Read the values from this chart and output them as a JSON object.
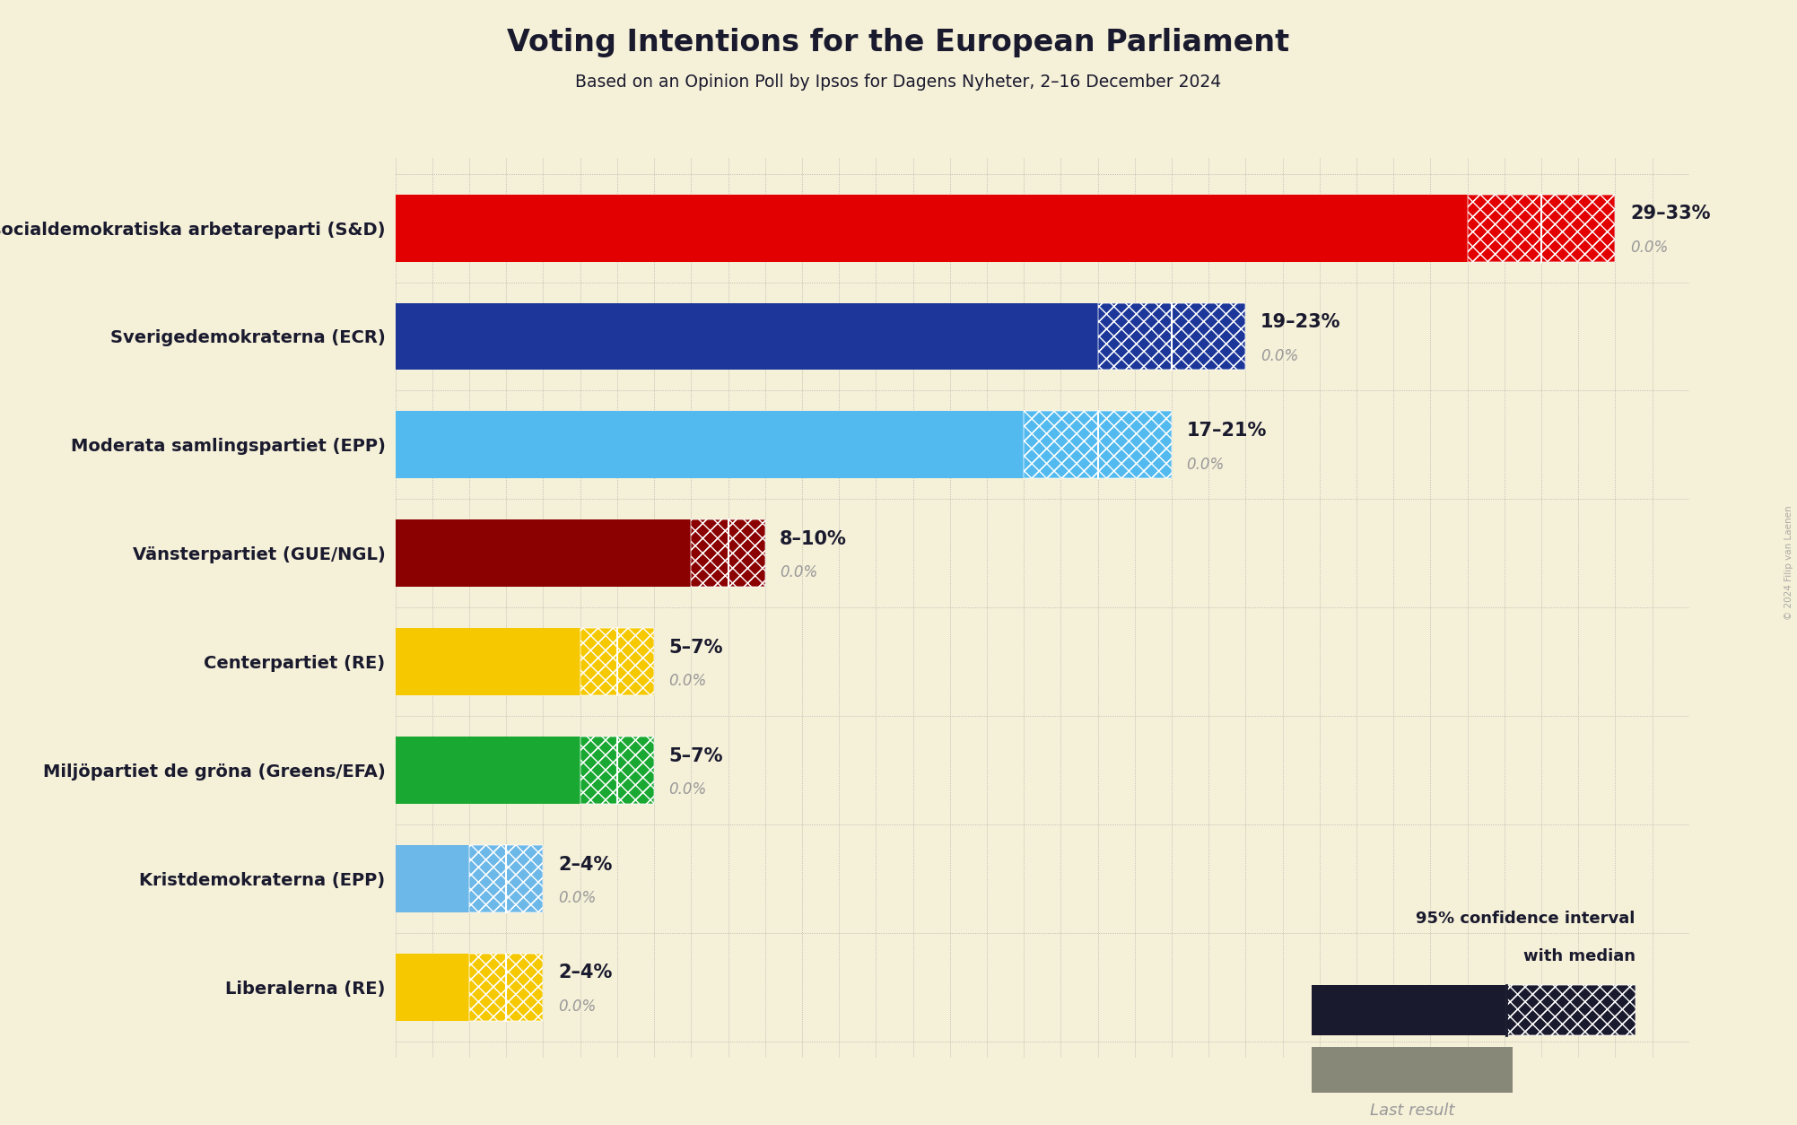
{
  "title": "Voting Intentions for the European Parliament",
  "subtitle": "Based on an Opinion Poll by Ipsos for Dagens Nyheter, 2–16 December 2024",
  "background_color": "#F5F0D8",
  "parties": [
    {
      "name": "Sveriges socialdemokratiska arbetareparti (S&D)",
      "low": 29,
      "high": 33,
      "median": 31,
      "last": 0.0,
      "color": "#E30000"
    },
    {
      "name": "Sverigedemokraterna (ECR)",
      "low": 19,
      "high": 23,
      "median": 21,
      "last": 0.0,
      "color": "#1C3799"
    },
    {
      "name": "Moderata samlingspartiet (EPP)",
      "low": 17,
      "high": 21,
      "median": 19,
      "last": 0.0,
      "color": "#52BAEF"
    },
    {
      "name": "Vänsterpartiet (GUE/NGL)",
      "low": 8,
      "high": 10,
      "median": 9,
      "last": 0.0,
      "color": "#8B0000"
    },
    {
      "name": "Centerpartiet (RE)",
      "low": 5,
      "high": 7,
      "median": 6,
      "last": 0.0,
      "color": "#F5C800"
    },
    {
      "name": "Miljöpartiet de gröna (Greens/EFA)",
      "low": 5,
      "high": 7,
      "median": 6,
      "last": 0.0,
      "color": "#19A832"
    },
    {
      "name": "Kristdemokraterna (EPP)",
      "low": 2,
      "high": 4,
      "median": 3,
      "last": 0.0,
      "color": "#6CB8E8"
    },
    {
      "name": "Liberalerna (RE)",
      "low": 2,
      "high": 4,
      "median": 3,
      "last": 0.0,
      "color": "#F5C800"
    }
  ],
  "xlim": [
    0,
    35
  ],
  "range_label_color": "#1A1A2E",
  "last_label_color": "#999999",
  "title_color": "#1A1A2E",
  "watermark": "© 2024 Filip van Laenen",
  "legend_dark_color": "#1A1A2E",
  "legend_grey_color": "#888878"
}
